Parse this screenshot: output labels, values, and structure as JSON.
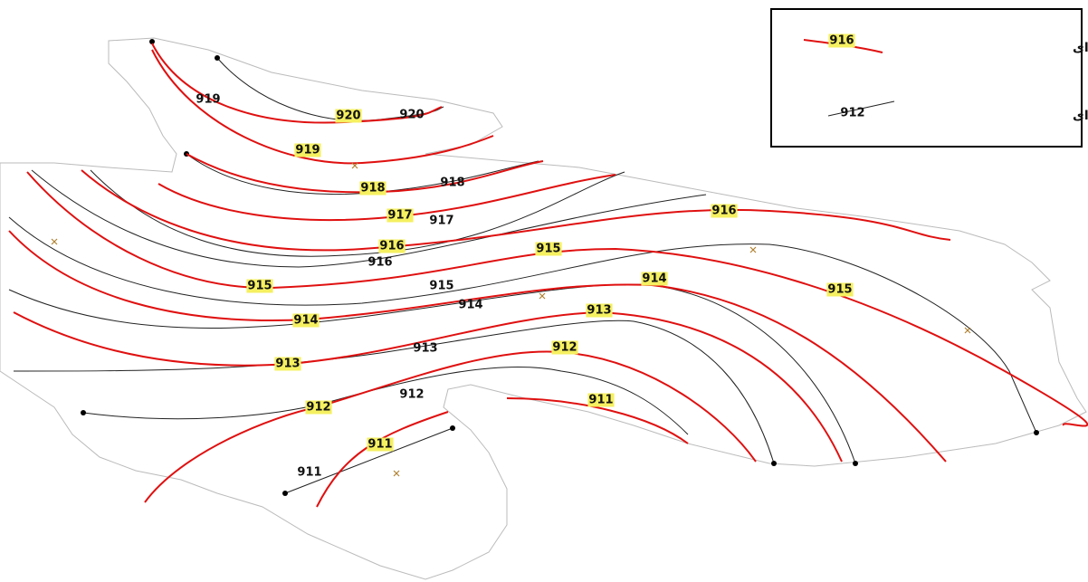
{
  "legend": {
    "calculated": {
      "label": "سطح آب محاسبه ای",
      "sample": 916
    },
    "observed": {
      "label": "سطح آب مشاهده ای",
      "sample": 912
    }
  },
  "calculated_contours": [
    920,
    919,
    918,
    917,
    916,
    916,
    915,
    915,
    915,
    914,
    914,
    913,
    913,
    912,
    912,
    911,
    911
  ],
  "observed_contours": [
    919,
    920,
    918,
    917,
    916,
    915,
    914,
    913,
    912,
    911
  ]
}
